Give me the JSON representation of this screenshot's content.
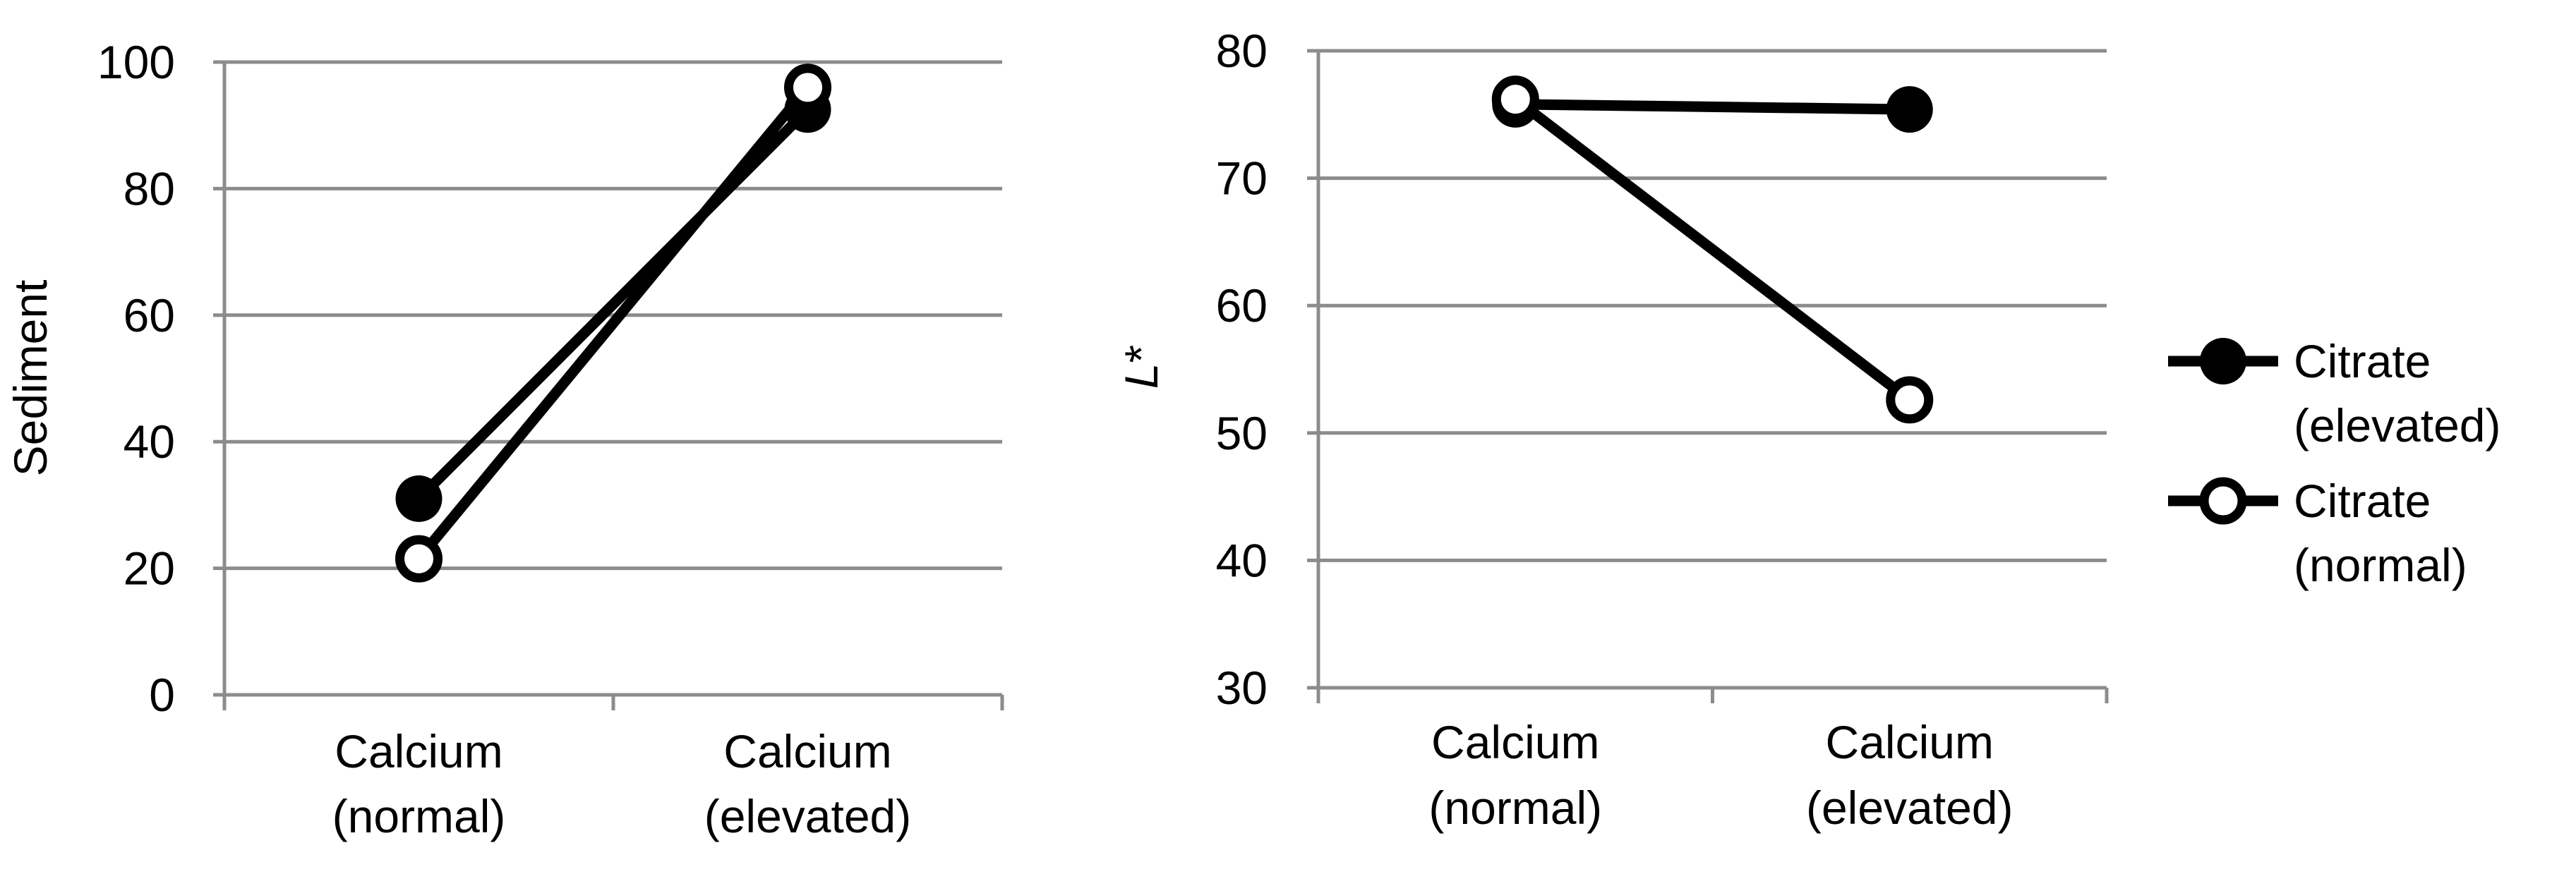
{
  "chart_data": [
    {
      "type": "line",
      "title": "",
      "xlabel": "",
      "ylabel": "Sediment",
      "ylim": [
        0,
        100
      ],
      "yticks": [
        "0",
        "20",
        "40",
        "60",
        "80",
        "100"
      ],
      "categories": [
        [
          "Calcium",
          "(normal)"
        ],
        [
          "Calcium",
          "(elevated)"
        ]
      ],
      "grid": true,
      "series": [
        {
          "name": "Citrate (elevated)",
          "marker": "filled",
          "values": [
            31,
            92.5
          ]
        },
        {
          "name": "Citrate (normal)",
          "marker": "hollow",
          "values": [
            21.5,
            96
          ]
        }
      ]
    },
    {
      "type": "line",
      "title": "",
      "xlabel": "",
      "ylabel_italic": "L",
      "ylabel_suffix": "*",
      "ylim": [
        30,
        80
      ],
      "yticks": [
        "30",
        "40",
        "50",
        "60",
        "70",
        "80"
      ],
      "categories": [
        [
          "Calcium",
          "(normal)"
        ],
        [
          "Calcium",
          "(elevated)"
        ]
      ],
      "grid": true,
      "series": [
        {
          "name": "Citrate (elevated)",
          "marker": "filled",
          "values": [
            75.8,
            75.4
          ]
        },
        {
          "name": "Citrate (normal)",
          "marker": "hollow",
          "values": [
            76.2,
            52.6
          ]
        }
      ]
    }
  ],
  "legend": {
    "placement": "right",
    "items": [
      {
        "line1": "Citrate",
        "line2": "(elevated)",
        "marker": "filled"
      },
      {
        "line1": "Citrate",
        "line2": "(normal)",
        "marker": "hollow"
      }
    ]
  }
}
